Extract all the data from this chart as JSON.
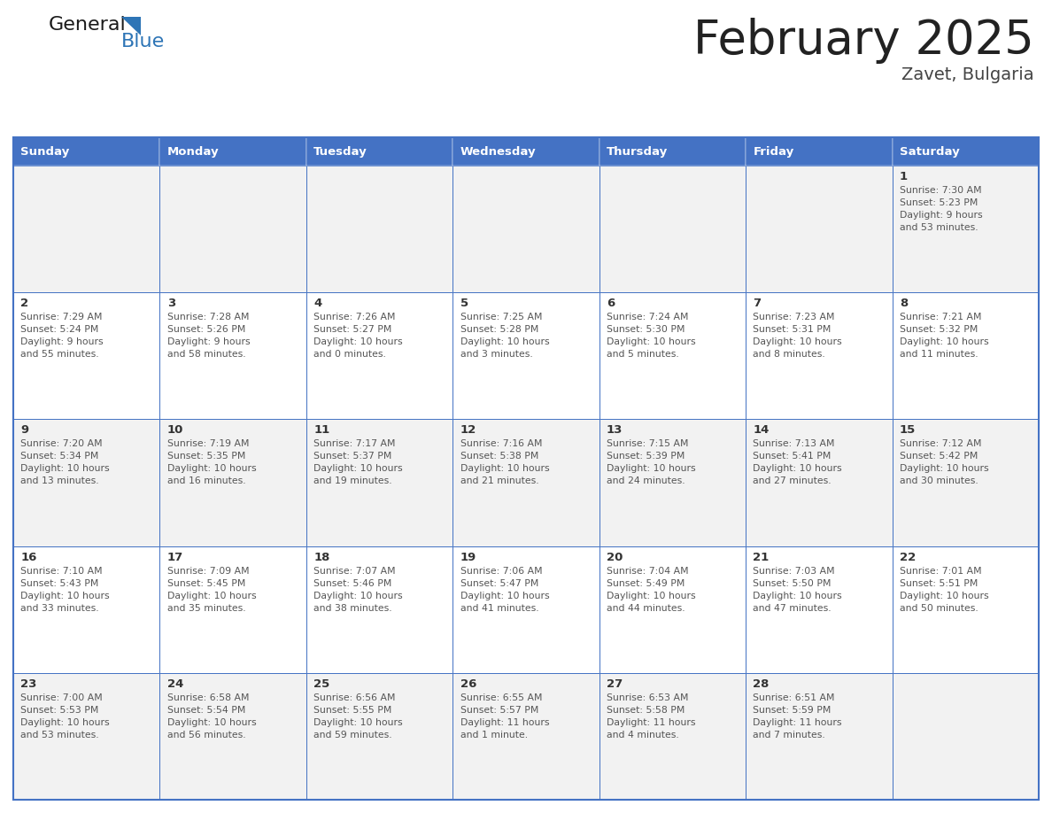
{
  "title": "February 2025",
  "subtitle": "Zavet, Bulgaria",
  "days_of_week": [
    "Sunday",
    "Monday",
    "Tuesday",
    "Wednesday",
    "Thursday",
    "Friday",
    "Saturday"
  ],
  "header_bg": "#4472C4",
  "header_text": "#FFFFFF",
  "cell_bg_white": "#FFFFFF",
  "cell_bg_gray": "#F2F2F2",
  "cell_border": "#4472C4",
  "day_number_color": "#333333",
  "day_text_color": "#555555",
  "title_color": "#222222",
  "subtitle_color": "#444444",
  "generalblue_black": "#1a1a1a",
  "generalblue_blue": "#2E75B6",
  "fig_width": 11.88,
  "fig_height": 9.18,
  "dpi": 100,
  "calendar_data": [
    {
      "day": 1,
      "col": 6,
      "row": 0,
      "sunrise": "7:30 AM",
      "sunset": "5:23 PM",
      "daylight_line1": "Daylight: 9 hours",
      "daylight_line2": "and 53 minutes."
    },
    {
      "day": 2,
      "col": 0,
      "row": 1,
      "sunrise": "7:29 AM",
      "sunset": "5:24 PM",
      "daylight_line1": "Daylight: 9 hours",
      "daylight_line2": "and 55 minutes."
    },
    {
      "day": 3,
      "col": 1,
      "row": 1,
      "sunrise": "7:28 AM",
      "sunset": "5:26 PM",
      "daylight_line1": "Daylight: 9 hours",
      "daylight_line2": "and 58 minutes."
    },
    {
      "day": 4,
      "col": 2,
      "row": 1,
      "sunrise": "7:26 AM",
      "sunset": "5:27 PM",
      "daylight_line1": "Daylight: 10 hours",
      "daylight_line2": "and 0 minutes."
    },
    {
      "day": 5,
      "col": 3,
      "row": 1,
      "sunrise": "7:25 AM",
      "sunset": "5:28 PM",
      "daylight_line1": "Daylight: 10 hours",
      "daylight_line2": "and 3 minutes."
    },
    {
      "day": 6,
      "col": 4,
      "row": 1,
      "sunrise": "7:24 AM",
      "sunset": "5:30 PM",
      "daylight_line1": "Daylight: 10 hours",
      "daylight_line2": "and 5 minutes."
    },
    {
      "day": 7,
      "col": 5,
      "row": 1,
      "sunrise": "7:23 AM",
      "sunset": "5:31 PM",
      "daylight_line1": "Daylight: 10 hours",
      "daylight_line2": "and 8 minutes."
    },
    {
      "day": 8,
      "col": 6,
      "row": 1,
      "sunrise": "7:21 AM",
      "sunset": "5:32 PM",
      "daylight_line1": "Daylight: 10 hours",
      "daylight_line2": "and 11 minutes."
    },
    {
      "day": 9,
      "col": 0,
      "row": 2,
      "sunrise": "7:20 AM",
      "sunset": "5:34 PM",
      "daylight_line1": "Daylight: 10 hours",
      "daylight_line2": "and 13 minutes."
    },
    {
      "day": 10,
      "col": 1,
      "row": 2,
      "sunrise": "7:19 AM",
      "sunset": "5:35 PM",
      "daylight_line1": "Daylight: 10 hours",
      "daylight_line2": "and 16 minutes."
    },
    {
      "day": 11,
      "col": 2,
      "row": 2,
      "sunrise": "7:17 AM",
      "sunset": "5:37 PM",
      "daylight_line1": "Daylight: 10 hours",
      "daylight_line2": "and 19 minutes."
    },
    {
      "day": 12,
      "col": 3,
      "row": 2,
      "sunrise": "7:16 AM",
      "sunset": "5:38 PM",
      "daylight_line1": "Daylight: 10 hours",
      "daylight_line2": "and 21 minutes."
    },
    {
      "day": 13,
      "col": 4,
      "row": 2,
      "sunrise": "7:15 AM",
      "sunset": "5:39 PM",
      "daylight_line1": "Daylight: 10 hours",
      "daylight_line2": "and 24 minutes."
    },
    {
      "day": 14,
      "col": 5,
      "row": 2,
      "sunrise": "7:13 AM",
      "sunset": "5:41 PM",
      "daylight_line1": "Daylight: 10 hours",
      "daylight_line2": "and 27 minutes."
    },
    {
      "day": 15,
      "col": 6,
      "row": 2,
      "sunrise": "7:12 AM",
      "sunset": "5:42 PM",
      "daylight_line1": "Daylight: 10 hours",
      "daylight_line2": "and 30 minutes."
    },
    {
      "day": 16,
      "col": 0,
      "row": 3,
      "sunrise": "7:10 AM",
      "sunset": "5:43 PM",
      "daylight_line1": "Daylight: 10 hours",
      "daylight_line2": "and 33 minutes."
    },
    {
      "day": 17,
      "col": 1,
      "row": 3,
      "sunrise": "7:09 AM",
      "sunset": "5:45 PM",
      "daylight_line1": "Daylight: 10 hours",
      "daylight_line2": "and 35 minutes."
    },
    {
      "day": 18,
      "col": 2,
      "row": 3,
      "sunrise": "7:07 AM",
      "sunset": "5:46 PM",
      "daylight_line1": "Daylight: 10 hours",
      "daylight_line2": "and 38 minutes."
    },
    {
      "day": 19,
      "col": 3,
      "row": 3,
      "sunrise": "7:06 AM",
      "sunset": "5:47 PM",
      "daylight_line1": "Daylight: 10 hours",
      "daylight_line2": "and 41 minutes."
    },
    {
      "day": 20,
      "col": 4,
      "row": 3,
      "sunrise": "7:04 AM",
      "sunset": "5:49 PM",
      "daylight_line1": "Daylight: 10 hours",
      "daylight_line2": "and 44 minutes."
    },
    {
      "day": 21,
      "col": 5,
      "row": 3,
      "sunrise": "7:03 AM",
      "sunset": "5:50 PM",
      "daylight_line1": "Daylight: 10 hours",
      "daylight_line2": "and 47 minutes."
    },
    {
      "day": 22,
      "col": 6,
      "row": 3,
      "sunrise": "7:01 AM",
      "sunset": "5:51 PM",
      "daylight_line1": "Daylight: 10 hours",
      "daylight_line2": "and 50 minutes."
    },
    {
      "day": 23,
      "col": 0,
      "row": 4,
      "sunrise": "7:00 AM",
      "sunset": "5:53 PM",
      "daylight_line1": "Daylight: 10 hours",
      "daylight_line2": "and 53 minutes."
    },
    {
      "day": 24,
      "col": 1,
      "row": 4,
      "sunrise": "6:58 AM",
      "sunset": "5:54 PM",
      "daylight_line1": "Daylight: 10 hours",
      "daylight_line2": "and 56 minutes."
    },
    {
      "day": 25,
      "col": 2,
      "row": 4,
      "sunrise": "6:56 AM",
      "sunset": "5:55 PM",
      "daylight_line1": "Daylight: 10 hours",
      "daylight_line2": "and 59 minutes."
    },
    {
      "day": 26,
      "col": 3,
      "row": 4,
      "sunrise": "6:55 AM",
      "sunset": "5:57 PM",
      "daylight_line1": "Daylight: 11 hours",
      "daylight_line2": "and 1 minute."
    },
    {
      "day": 27,
      "col": 4,
      "row": 4,
      "sunrise": "6:53 AM",
      "sunset": "5:58 PM",
      "daylight_line1": "Daylight: 11 hours",
      "daylight_line2": "and 4 minutes."
    },
    {
      "day": 28,
      "col": 5,
      "row": 4,
      "sunrise": "6:51 AM",
      "sunset": "5:59 PM",
      "daylight_line1": "Daylight: 11 hours",
      "daylight_line2": "and 7 minutes."
    }
  ]
}
